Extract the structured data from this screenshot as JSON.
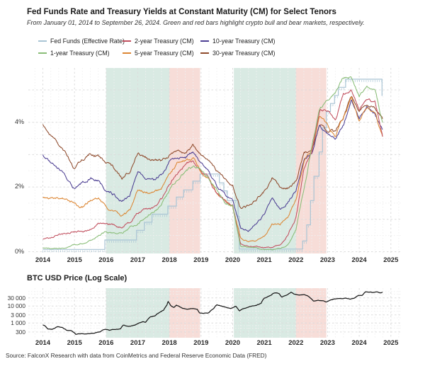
{
  "header": {
    "title": "Fed Funds Rate and Treasury Yields at Constant Maturity (CM) for Select Tenors",
    "subtitle": "From January 01, 2014 to September 26, 2024. Green and red bars highlight crypto bull and bear markets, respectively."
  },
  "btc_header": {
    "title": "BTC USD Price (Log Scale)"
  },
  "source": {
    "text": "Source: FalconX Research with data from CoinMetrics and Federal Reserve Economic Data (FRED)"
  },
  "colors": {
    "bull_band": "#d9eae3",
    "bear_band": "#f7ddd8",
    "fed_funds": "#a9c4d4",
    "treasury_1y": "#89bd77",
    "treasury_2y": "#c14f5e",
    "treasury_5y": "#dc8633",
    "treasury_10y": "#4d3f93",
    "treasury_30y": "#8e4a2c",
    "btc_line": "#1a1a1a"
  },
  "legend": {
    "items": [
      {
        "label": "Fed Funds (Effective Rate)",
        "color": "#a9c4d4"
      },
      {
        "label": "2-year Treasury (CM)",
        "color": "#c14f5e"
      },
      {
        "label": "10-year Treasury (CM)",
        "color": "#4d3f93"
      },
      {
        "label": "1-year Treasury (CM)",
        "color": "#89bd77"
      },
      {
        "label": "5-year Treasury (CM)",
        "color": "#dc8633"
      },
      {
        "label": "30-year Treasury (CM)",
        "color": "#8e4a2c"
      }
    ]
  },
  "chart_data": [
    {
      "type": "line",
      "title": "Fed Funds Rate and Treasury Yields at Constant Maturity (CM) for Select Tenors",
      "subtitle": "From January 01, 2014 to September 26, 2024. Green and red bars highlight crypto bull and bear markets, respectively.",
      "xlabel": "",
      "ylabel": "",
      "x_range": [
        2013.5,
        2025.3
      ],
      "ylim": [
        0,
        5.7
      ],
      "grid": true,
      "legend_position": "top",
      "x_ticks": [
        2014,
        2015,
        2016,
        2017,
        2018,
        2019,
        2020,
        2021,
        2022,
        2023,
        2024,
        2025
      ],
      "y_ticks": [
        {
          "value": 0,
          "label": "0%"
        },
        {
          "value": 2,
          "label": "2%"
        },
        {
          "value": 4,
          "label": "4%"
        }
      ],
      "bands": [
        {
          "x0": 2016.0,
          "x1": 2018.0,
          "type": "bull"
        },
        {
          "x0": 2018.0,
          "x1": 2018.97,
          "type": "bear"
        },
        {
          "x0": 2020.04,
          "x1": 2022.0,
          "type": "bull"
        },
        {
          "x0": 2022.0,
          "x1": 2022.96,
          "type": "bear"
        }
      ],
      "x": [
        2014,
        2014.25,
        2014.5,
        2014.75,
        2015,
        2015.25,
        2015.5,
        2015.75,
        2016,
        2016.25,
        2016.5,
        2016.75,
        2017,
        2017.25,
        2017.5,
        2017.75,
        2018,
        2018.25,
        2018.5,
        2018.75,
        2019,
        2019.25,
        2019.5,
        2019.75,
        2020,
        2020.25,
        2020.5,
        2020.75,
        2021,
        2021.25,
        2021.5,
        2021.75,
        2022,
        2022.25,
        2022.5,
        2022.75,
        2023,
        2023.25,
        2023.5,
        2023.75,
        2024,
        2024.25,
        2024.5,
        2024.74
      ],
      "series": [
        {
          "name": "Fed Funds (Effective Rate)",
          "color": "#a9c4d4",
          "style": "step",
          "x": [
            2014.0,
            2015.96,
            2016.96,
            2017.21,
            2017.45,
            2017.95,
            2018.22,
            2018.45,
            2018.74,
            2018.97,
            2019.58,
            2019.72,
            2019.83,
            2020.17,
            2020.21,
            2022.21,
            2022.34,
            2022.46,
            2022.57,
            2022.73,
            2022.84,
            2022.96,
            2023.09,
            2023.22,
            2023.34,
            2023.57,
            2024.72,
            2024.74
          ],
          "values": [
            0.07,
            0.36,
            0.66,
            0.91,
            1.16,
            1.41,
            1.69,
            1.91,
            2.18,
            2.4,
            2.13,
            1.88,
            1.58,
            1.09,
            0.08,
            0.33,
            0.83,
            1.58,
            2.33,
            3.08,
            3.83,
            4.33,
            4.58,
            4.83,
            5.08,
            5.33,
            4.83,
            4.83
          ]
        },
        {
          "name": "1-year Treasury (CM)",
          "color": "#89bd77",
          "values": [
            0.12,
            0.1,
            0.1,
            0.12,
            0.22,
            0.26,
            0.33,
            0.5,
            0.62,
            0.56,
            0.57,
            0.75,
            0.87,
            1.05,
            1.23,
            1.48,
            1.9,
            2.25,
            2.45,
            2.63,
            2.55,
            2.3,
            1.92,
            1.57,
            1.45,
            0.17,
            0.13,
            0.11,
            0.07,
            0.06,
            0.08,
            0.2,
            0.68,
            1.9,
            3.25,
            4.45,
            4.68,
            4.95,
            5.35,
            5.4,
            4.82,
            5.08,
            4.95,
            3.98
          ]
        },
        {
          "name": "2-year Treasury (CM)",
          "color": "#c14f5e",
          "values": [
            0.4,
            0.44,
            0.52,
            0.58,
            0.62,
            0.62,
            0.7,
            0.88,
            0.85,
            0.8,
            0.76,
            0.92,
            1.22,
            1.3,
            1.36,
            1.62,
            2.1,
            2.45,
            2.65,
            2.82,
            2.48,
            2.28,
            1.78,
            1.6,
            1.42,
            0.23,
            0.15,
            0.15,
            0.12,
            0.15,
            0.22,
            0.52,
            1.05,
            2.55,
            3.1,
            4.38,
            4.42,
            4.0,
            4.88,
            5.02,
            4.4,
            4.68,
            4.65,
            3.58
          ]
        },
        {
          "name": "5-year Treasury (CM)",
          "color": "#dc8633",
          "values": [
            1.7,
            1.68,
            1.66,
            1.62,
            1.48,
            1.38,
            1.58,
            1.66,
            1.38,
            1.22,
            1.12,
            1.28,
            1.9,
            1.84,
            1.8,
            1.96,
            2.4,
            2.75,
            2.8,
            2.92,
            2.45,
            2.22,
            1.8,
            1.62,
            1.42,
            0.46,
            0.3,
            0.32,
            0.46,
            0.85,
            0.8,
            1.08,
            1.58,
            2.78,
            3.18,
            4.18,
            3.95,
            3.55,
            4.15,
            4.75,
            4.05,
            4.45,
            4.32,
            3.52
          ]
        },
        {
          "name": "10-year Treasury (CM)",
          "color": "#4d3f93",
          "values": [
            2.98,
            2.72,
            2.54,
            2.3,
            1.95,
            2.15,
            2.28,
            2.2,
            1.9,
            1.78,
            1.56,
            1.76,
            2.45,
            2.3,
            2.24,
            2.35,
            2.76,
            2.95,
            2.9,
            3.1,
            2.7,
            2.5,
            2.02,
            1.8,
            1.62,
            0.7,
            0.66,
            0.86,
            1.15,
            1.6,
            1.32,
            1.55,
            1.85,
            2.88,
            3.02,
            3.95,
            3.65,
            3.48,
            3.95,
            4.68,
            4.1,
            4.48,
            4.28,
            3.76
          ]
        },
        {
          "name": "30-year Treasury (CM)",
          "color": "#8e4a2c",
          "values": [
            3.92,
            3.55,
            3.32,
            3.02,
            2.55,
            2.85,
            3.02,
            2.95,
            2.72,
            2.58,
            2.26,
            2.5,
            3.04,
            2.92,
            2.84,
            2.8,
            2.96,
            3.1,
            3.05,
            3.3,
            3.04,
            2.88,
            2.52,
            2.25,
            2.06,
            1.36,
            1.4,
            1.62,
            1.86,
            2.3,
            1.96,
            1.96,
            2.16,
            3.02,
            3.16,
            3.92,
            3.7,
            3.72,
            4.1,
            4.78,
            4.32,
            4.6,
            4.42,
            4.08
          ]
        }
      ]
    },
    {
      "type": "line",
      "title": "BTC USD Price (Log Scale)",
      "xlabel": "",
      "ylabel": "",
      "y_scale": "log",
      "x_range": [
        2013.5,
        2025.3
      ],
      "ylim": [
        200,
        104000
      ],
      "grid": true,
      "x_ticks": [
        2014,
        2015,
        2016,
        2017,
        2018,
        2019,
        2020,
        2021,
        2022,
        2023,
        2024,
        2025
      ],
      "y_ticks": [
        {
          "value": 30000,
          "label": "30 000"
        },
        {
          "value": 10000,
          "label": "10 000"
        },
        {
          "value": 3000,
          "label": "3 000"
        },
        {
          "value": 1000,
          "label": "1 000"
        },
        {
          "value": 300,
          "label": "300"
        }
      ],
      "bands": [
        {
          "x0": 2016.0,
          "x1": 2018.0,
          "type": "bull"
        },
        {
          "x0": 2018.0,
          "x1": 2018.97,
          "type": "bear"
        },
        {
          "x0": 2020.04,
          "x1": 2022.0,
          "type": "bull"
        },
        {
          "x0": 2022.0,
          "x1": 2022.96,
          "type": "bear"
        }
      ],
      "series": [
        {
          "name": "BTC USD Price",
          "color": "#1a1a1a",
          "x": [
            2014.0,
            2014.08,
            2014.15,
            2014.3,
            2014.45,
            2014.6,
            2014.75,
            2014.9,
            2015.04,
            2015.2,
            2015.4,
            2015.6,
            2015.8,
            2015.95,
            2016.1,
            2016.3,
            2016.45,
            2016.55,
            2016.7,
            2016.9,
            2017.0,
            2017.15,
            2017.25,
            2017.4,
            2017.55,
            2017.7,
            2017.82,
            2017.92,
            2017.96,
            2018.05,
            2018.15,
            2018.22,
            2018.4,
            2018.55,
            2018.7,
            2018.88,
            2018.95,
            2019.08,
            2019.25,
            2019.4,
            2019.5,
            2019.65,
            2019.8,
            2019.95,
            2020.1,
            2020.21,
            2020.35,
            2020.55,
            2020.75,
            2020.9,
            2021.0,
            2021.1,
            2021.25,
            2021.32,
            2021.45,
            2021.55,
            2021.7,
            2021.85,
            2021.95,
            2022.1,
            2022.25,
            2022.38,
            2022.46,
            2022.55,
            2022.7,
            2022.85,
            2022.95,
            2023.08,
            2023.2,
            2023.33,
            2023.45,
            2023.58,
            2023.7,
            2023.85,
            2023.98,
            2024.1,
            2024.2,
            2024.32,
            2024.45,
            2024.55,
            2024.65,
            2024.74
          ],
          "values": [
            770,
            650,
            460,
            445,
            630,
            585,
            380,
            350,
            218,
            244,
            235,
            255,
            300,
            428,
            382,
            448,
            455,
            760,
            610,
            740,
            965,
            1180,
            1060,
            2350,
            2550,
            4300,
            5900,
            11500,
            19000,
            10500,
            8600,
            11200,
            7400,
            6450,
            7200,
            6350,
            3900,
            3550,
            4100,
            7200,
            11500,
            10200,
            8100,
            7300,
            9600,
            5300,
            6900,
            9250,
            10900,
            14500,
            29000,
            34500,
            50000,
            59000,
            56000,
            33000,
            44000,
            63500,
            49000,
            42500,
            45500,
            38500,
            29500,
            20000,
            22000,
            19800,
            16600,
            21500,
            24800,
            28200,
            26800,
            30200,
            26200,
            28500,
            42500,
            43500,
            68000,
            64500,
            61500,
            65000,
            56500,
            63500
          ]
        }
      ]
    }
  ]
}
